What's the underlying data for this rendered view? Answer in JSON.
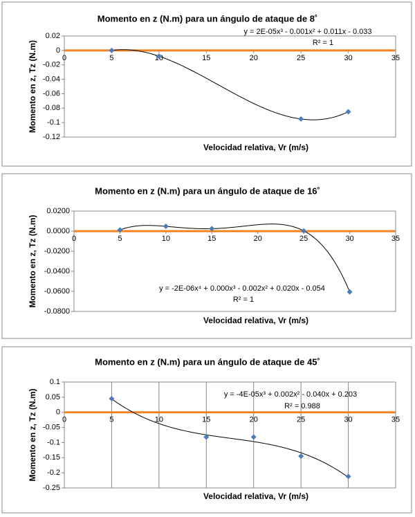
{
  "chart_data": [
    {
      "type": "scatter",
      "title": "Momento en z (N.m) para un ángulo de ataque de 8˚",
      "xlabel": "Velocidad relativa, Vr (m/s)",
      "ylabel": "Momento en z, Tz (N.m)",
      "x": [
        5,
        10,
        25,
        30
      ],
      "values": [
        0,
        -0.008,
        -0.095,
        -0.085
      ],
      "color": "#4a7ebb",
      "trendline": {
        "degree": 3,
        "color": "#000000",
        "label": "y = 2E-05x³ - 0.001x² + 0.011x - 0.033",
        "r2_label": "R² = 1"
      },
      "zero_line_color": "#f58220",
      "vertical_grid": false,
      "xlim": [
        0,
        35
      ],
      "xticks": [
        0,
        5,
        10,
        15,
        20,
        25,
        30,
        35
      ],
      "ylim": [
        -0.12,
        0.02
      ],
      "yticks": [
        0.02,
        0,
        -0.02,
        -0.04,
        -0.06,
        -0.08,
        -0.1,
        -0.12
      ]
    },
    {
      "type": "scatter",
      "title": "Momento en z (N.m) para un ángulo de ataque de 16˚",
      "xlabel": "Velocidad relativa, Vr (m/s)",
      "ylabel": "Momento en z, Tz (N.m)",
      "x": [
        5,
        10,
        15,
        25,
        30
      ],
      "values": [
        0.0012,
        0.0048,
        0.0025,
        0.0003,
        -0.0605
      ],
      "color": "#4a7ebb",
      "trendline": {
        "degree": 4,
        "color": "#000000",
        "label": "y = -2E-06x⁴ + 0.000x³ - 0.002x² + 0.020x - 0.054",
        "r2_label": "R² = 1"
      },
      "zero_line_color": "#f58220",
      "vertical_grid": false,
      "xlim": [
        0,
        35
      ],
      "xticks": [
        0,
        5,
        10,
        15,
        20,
        25,
        30,
        35
      ],
      "ylim": [
        -0.08,
        0.02
      ],
      "yticks": [
        {
          "value": 0.02,
          "label": "0.0200"
        },
        {
          "value": 0,
          "label": "0.0000"
        },
        {
          "value": -0.02,
          "label": "-0.0200"
        },
        {
          "value": -0.04,
          "label": "-0.0400"
        },
        {
          "value": -0.06,
          "label": "-0.0600"
        },
        {
          "value": -0.08,
          "label": "-0.0800"
        }
      ]
    },
    {
      "type": "scatter",
      "title": "Momento en z (N.m) para un ángulo de ataque de 45˚",
      "xlabel": "Velocidad relativa, Vr (m/s)",
      "ylabel": "Momento en z, Tz (N.m)",
      "x": [
        5,
        15,
        20,
        25,
        30
      ],
      "values": [
        0.045,
        -0.082,
        -0.082,
        -0.145,
        -0.212
      ],
      "color": "#4a7ebb",
      "trendline": {
        "degree": 3,
        "color": "#000000",
        "label": "y = -4E-05x³ + 0.002x² - 0.040x + 0.203",
        "r2_label": "R² = 0.988"
      },
      "zero_line_color": "#f58220",
      "vertical_grid": true,
      "xlim": [
        0,
        35
      ],
      "xticks": [
        0,
        5,
        10,
        15,
        20,
        25,
        30,
        35
      ],
      "ylim": [
        -0.25,
        0.1
      ],
      "yticks": [
        0.1,
        0.05,
        0,
        -0.05,
        -0.1,
        -0.15,
        -0.2,
        -0.25
      ]
    }
  ]
}
